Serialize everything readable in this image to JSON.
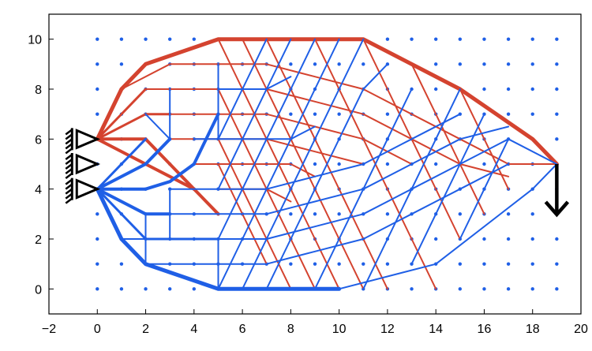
{
  "chart_data": {
    "type": "diagram",
    "title": "",
    "xlabel": "",
    "ylabel": "",
    "xlim": [
      -2,
      20
    ],
    "ylim": [
      -1,
      11
    ],
    "xticks": [
      "−2",
      "0",
      "2",
      "4",
      "6",
      "8",
      "10",
      "12",
      "14",
      "16",
      "18",
      "20"
    ],
    "yticks": [
      "0",
      "2",
      "4",
      "6",
      "8",
      "10"
    ],
    "colors": {
      "tension": "#d4432f",
      "compression": "#1f5fe6",
      "grid_dots": "#1f5fe6",
      "axis": "#000000",
      "supports": "#000000"
    },
    "grid_nodes": {
      "x_range": [
        0,
        19
      ],
      "y_range": [
        0,
        10
      ],
      "step": 1
    },
    "supports": [
      {
        "x": 0,
        "y": 6
      },
      {
        "x": 0,
        "y": 5
      },
      {
        "x": 0,
        "y": 4
      }
    ],
    "load": {
      "x": 19,
      "y": 5,
      "direction": "down"
    },
    "bars": {
      "tension": [
        {
          "w": 5,
          "pts": [
            [
              0,
              6
            ],
            [
              1,
              8
            ],
            [
              2,
              9
            ],
            [
              5,
              10
            ],
            [
              11,
              10
            ],
            [
              15,
              8
            ],
            [
              18,
              6
            ],
            [
              19,
              5
            ]
          ]
        },
        {
          "w": 4,
          "pts": [
            [
              0,
              6
            ],
            [
              2,
              5
            ],
            [
              3,
              4.5
            ],
            [
              4,
              4
            ],
            [
              5,
              3
            ]
          ]
        },
        {
          "w": 4,
          "pts": [
            [
              0,
              6
            ],
            [
              2,
              6
            ],
            [
              3,
              5
            ],
            [
              4,
              4
            ]
          ]
        },
        {
          "w": 3,
          "pts": [
            [
              0,
              6
            ],
            [
              2,
              7
            ],
            [
              3,
              7
            ]
          ]
        },
        {
          "w": 3,
          "pts": [
            [
              0,
              6
            ],
            [
              2,
              8
            ]
          ]
        },
        {
          "w": 2,
          "pts": [
            [
              1,
              8
            ],
            [
              3,
              9
            ],
            [
              5,
              9
            ],
            [
              7,
              9
            ],
            [
              9,
              8.5
            ],
            [
              11,
              8
            ],
            [
              13,
              7
            ],
            [
              15,
              6
            ],
            [
              17,
              5
            ],
            [
              19,
              5
            ]
          ]
        },
        {
          "w": 2,
          "pts": [
            [
              2,
              8
            ],
            [
              3,
              8
            ],
            [
              5,
              8
            ],
            [
              7,
              8
            ],
            [
              9,
              7.5
            ],
            [
              11,
              7
            ],
            [
              13,
              6
            ],
            [
              15,
              5
            ],
            [
              17,
              4.5
            ]
          ]
        },
        {
          "w": 2,
          "pts": [
            [
              3,
              7
            ],
            [
              5,
              7
            ],
            [
              7,
              7
            ],
            [
              9,
              6.5
            ],
            [
              11,
              6
            ],
            [
              13,
              5
            ]
          ]
        },
        {
          "w": 2,
          "pts": [
            [
              3,
              6
            ],
            [
              5,
              6
            ],
            [
              7,
              6
            ],
            [
              9,
              5.5
            ],
            [
              11,
              5
            ]
          ]
        },
        {
          "w": 2,
          "pts": [
            [
              4,
              5
            ],
            [
              6,
              5
            ],
            [
              8,
              5
            ],
            [
              9,
              4.5
            ]
          ]
        },
        {
          "w": 2,
          "pts": [
            [
              5,
              4
            ],
            [
              7,
              4
            ],
            [
              8,
              3.5
            ]
          ]
        },
        {
          "w": 2,
          "pts": [
            [
              6,
              10
            ],
            [
              7,
              8
            ],
            [
              8,
              6
            ],
            [
              9,
              4
            ],
            [
              10,
              2
            ],
            [
              11,
              0
            ]
          ]
        },
        {
          "w": 2,
          "pts": [
            [
              7,
              10
            ],
            [
              8,
              8
            ],
            [
              9,
              6
            ],
            [
              10,
              4
            ],
            [
              11,
              2
            ],
            [
              12,
              0
            ]
          ]
        },
        {
          "w": 2,
          "pts": [
            [
              9,
              10
            ],
            [
              10,
              8
            ],
            [
              11,
              6
            ],
            [
              12,
              4
            ],
            [
              13,
              2
            ],
            [
              14,
              0
            ]
          ]
        },
        {
          "w": 2,
          "pts": [
            [
              11,
              10
            ],
            [
              12,
              8
            ],
            [
              13,
              6
            ],
            [
              14,
              4
            ],
            [
              15,
              2
            ]
          ]
        },
        {
          "w": 2,
          "pts": [
            [
              13,
              9
            ],
            [
              14,
              7
            ],
            [
              15,
              5
            ],
            [
              16,
              3
            ]
          ]
        },
        {
          "w": 2,
          "pts": [
            [
              15,
              8
            ],
            [
              16,
              6
            ],
            [
              17,
              4
            ]
          ]
        },
        {
          "w": 2,
          "pts": [
            [
              5,
              10
            ],
            [
              6,
              8
            ],
            [
              7,
              6
            ],
            [
              8,
              4
            ],
            [
              9,
              2
            ],
            [
              10,
              0
            ]
          ]
        },
        {
          "w": 2,
          "pts": [
            [
              5,
              8
            ],
            [
              6,
              6
            ],
            [
              7,
              4
            ],
            [
              8,
              2
            ],
            [
              9,
              0
            ]
          ]
        },
        {
          "w": 2,
          "pts": [
            [
              5,
              6
            ],
            [
              6,
              4
            ],
            [
              7,
              2
            ],
            [
              8,
              0
            ]
          ]
        },
        {
          "w": 2,
          "pts": [
            [
              5,
              5
            ],
            [
              6,
              3
            ],
            [
              7,
              1
            ]
          ]
        }
      ],
      "compression": [
        {
          "w": 5,
          "pts": [
            [
              0,
              4
            ],
            [
              1,
              2
            ],
            [
              2,
              1
            ],
            [
              5,
              0
            ],
            [
              10,
              0
            ]
          ]
        },
        {
          "w": 2,
          "pts": [
            [
              10,
              0
            ],
            [
              14,
              1
            ],
            [
              18,
              4
            ],
            [
              19,
              5
            ]
          ]
        },
        {
          "w": 4,
          "pts": [
            [
              0,
              4
            ],
            [
              2,
              3
            ],
            [
              3,
              3
            ]
          ]
        },
        {
          "w": 4,
          "pts": [
            [
              0,
              4
            ],
            [
              2,
              4
            ],
            [
              3,
              4.3
            ],
            [
              4,
              5
            ],
            [
              5,
              7
            ]
          ]
        },
        {
          "w": 4,
          "pts": [
            [
              0,
              4
            ],
            [
              2,
              5
            ],
            [
              3,
              6
            ]
          ]
        },
        {
          "w": 3,
          "pts": [
            [
              0,
              4
            ],
            [
              2,
              2
            ],
            [
              5,
              2
            ]
          ]
        },
        {
          "w": 3,
          "pts": [
            [
              0,
              4
            ],
            [
              2,
              6
            ]
          ]
        },
        {
          "w": 2,
          "pts": [
            [
              0,
              4
            ],
            [
              2,
              4
            ]
          ]
        },
        {
          "w": 2,
          "pts": [
            [
              1,
              2
            ],
            [
              3,
              2
            ],
            [
              5,
              2
            ],
            [
              7,
              2
            ],
            [
              9,
              2.5
            ],
            [
              11,
              3
            ],
            [
              13,
              4
            ],
            [
              15,
              5
            ],
            [
              17,
              6
            ],
            [
              19,
              5
            ]
          ]
        },
        {
          "w": 2,
          "pts": [
            [
              2,
              3
            ],
            [
              3,
              3
            ],
            [
              5,
              3
            ],
            [
              7,
              3
            ],
            [
              9,
              3.5
            ],
            [
              11,
              4
            ],
            [
              13,
              5
            ],
            [
              15,
              6
            ],
            [
              17,
              6.5
            ]
          ]
        },
        {
          "w": 2,
          "pts": [
            [
              3,
              4
            ],
            [
              5,
              4
            ],
            [
              7,
              4
            ],
            [
              9,
              4.5
            ],
            [
              11,
              5
            ],
            [
              13,
              6
            ],
            [
              15,
              7
            ]
          ]
        },
        {
          "w": 2,
          "pts": [
            [
              2,
              1
            ],
            [
              5,
              1
            ],
            [
              7,
              1
            ],
            [
              9,
              1.5
            ],
            [
              11,
              2
            ],
            [
              13,
              3
            ],
            [
              15,
              4
            ],
            [
              17,
              5
            ]
          ]
        },
        {
          "w": 2,
          "pts": [
            [
              4,
              6
            ],
            [
              6,
              6
            ],
            [
              8,
              6
            ],
            [
              9,
              6.5
            ]
          ]
        },
        {
          "w": 2,
          "pts": [
            [
              5,
              8
            ],
            [
              7,
              8
            ],
            [
              8,
              8.5
            ]
          ]
        },
        {
          "w": 2,
          "pts": [
            [
              6,
              0
            ],
            [
              7,
              2
            ],
            [
              8,
              4
            ],
            [
              9,
              6
            ],
            [
              10,
              8
            ],
            [
              11,
              10
            ]
          ]
        },
        {
          "w": 2,
          "pts": [
            [
              7,
              0
            ],
            [
              8,
              2
            ],
            [
              9,
              4
            ],
            [
              10,
              6
            ],
            [
              11,
              8
            ],
            [
              12,
              9
            ]
          ]
        },
        {
          "w": 2,
          "pts": [
            [
              9,
              0
            ],
            [
              10,
              2
            ],
            [
              11,
              4
            ],
            [
              12,
              6
            ],
            [
              13,
              8
            ]
          ]
        },
        {
          "w": 2,
          "pts": [
            [
              11,
              0
            ],
            [
              12,
              2
            ],
            [
              13,
              4
            ],
            [
              14,
              6
            ],
            [
              15,
              8
            ]
          ]
        },
        {
          "w": 2,
          "pts": [
            [
              13,
              1
            ],
            [
              14,
              3
            ],
            [
              15,
              5
            ],
            [
              16,
              7
            ]
          ]
        },
        {
          "w": 2,
          "pts": [
            [
              15,
              2
            ],
            [
              16,
              4
            ],
            [
              17,
              6
            ]
          ]
        },
        {
          "w": 2,
          "pts": [
            [
              5,
              0
            ],
            [
              6,
              2
            ],
            [
              7,
              4
            ],
            [
              8,
              6
            ],
            [
              9,
              8
            ],
            [
              10,
              10
            ]
          ]
        },
        {
          "w": 2,
          "pts": [
            [
              5,
              2
            ],
            [
              6,
              4
            ],
            [
              7,
              6
            ],
            [
              8,
              8
            ],
            [
              9,
              10
            ]
          ]
        },
        {
          "w": 2,
          "pts": [
            [
              5,
              4
            ],
            [
              6,
              6
            ],
            [
              7,
              8
            ],
            [
              8,
              10
            ]
          ]
        },
        {
          "w": 2,
          "pts": [
            [
              5,
              6
            ],
            [
              6,
              8
            ],
            [
              7,
              10
            ]
          ]
        },
        {
          "w": 2,
          "pts": [
            [
              2,
              1
            ],
            [
              2,
              3
            ]
          ]
        },
        {
          "w": 2,
          "pts": [
            [
              3,
              2
            ],
            [
              3,
              4
            ]
          ]
        },
        {
          "w": 2,
          "pts": [
            [
              5,
              0
            ],
            [
              5,
              2
            ]
          ]
        },
        {
          "w": 2,
          "pts": [
            [
              2,
              7
            ],
            [
              3,
              6
            ],
            [
              3,
              8
            ]
          ]
        },
        {
          "w": 2,
          "pts": [
            [
              5,
              6
            ],
            [
              5,
              9
            ]
          ]
        }
      ]
    }
  }
}
